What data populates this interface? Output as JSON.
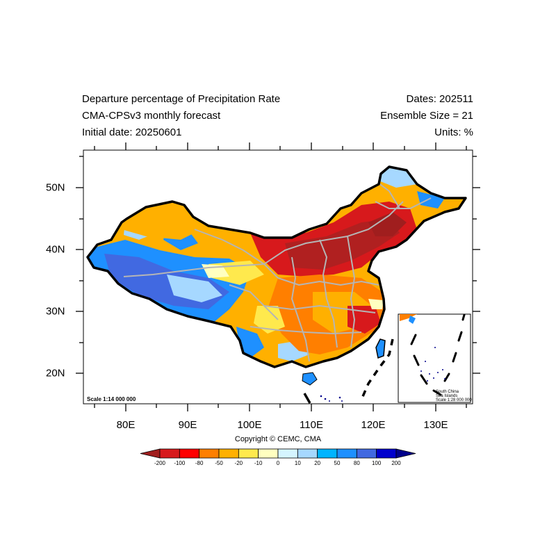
{
  "header": {
    "title_line1": "Departure percentage of Precipitation Rate",
    "title_line2": "CMA-CPSv3 monthly forecast",
    "title_line3": "Initial date: 20250601",
    "dates": "Dates: 202511",
    "ensemble": "Ensemble Size = 21",
    "units": "Units: %"
  },
  "axes": {
    "lat_labels": [
      "50N",
      "40N",
      "30N",
      "20N"
    ],
    "lon_labels": [
      "80E",
      "90E",
      "100E",
      "110E",
      "120E",
      "130E"
    ]
  },
  "scale_main": "Scale 1:14 000 000",
  "inset": {
    "line1": "South China",
    "line2": "Sea Islands",
    "line3": "Scale 1:28 000 000"
  },
  "copyright": "Copyright © CEMC, CMA",
  "colorbar": {
    "labels": [
      "-200",
      "-100",
      "-80",
      "-50",
      "-20",
      "-10",
      "0",
      "10",
      "20",
      "50",
      "80",
      "100",
      "200"
    ],
    "colors": [
      "#a01e1e",
      "#d7191c",
      "#ff0000",
      "#ff7f00",
      "#ffb000",
      "#ffe94d",
      "#ffffc0",
      "#d5f5ff",
      "#a6d8ff",
      "#00b4ff",
      "#1e90ff",
      "#4169e1",
      "#0000cd",
      "#00008b"
    ]
  },
  "field_colors": {
    "deep_red": "#b02020",
    "red": "#d7191c",
    "orange": "#ff7f00",
    "light_orange": "#ffb000",
    "yellow": "#ffe94d",
    "pale": "#ffffc0",
    "light_blue": "#a6d8ff",
    "blue": "#1e90ff",
    "dark_blue": "#4169e1"
  }
}
